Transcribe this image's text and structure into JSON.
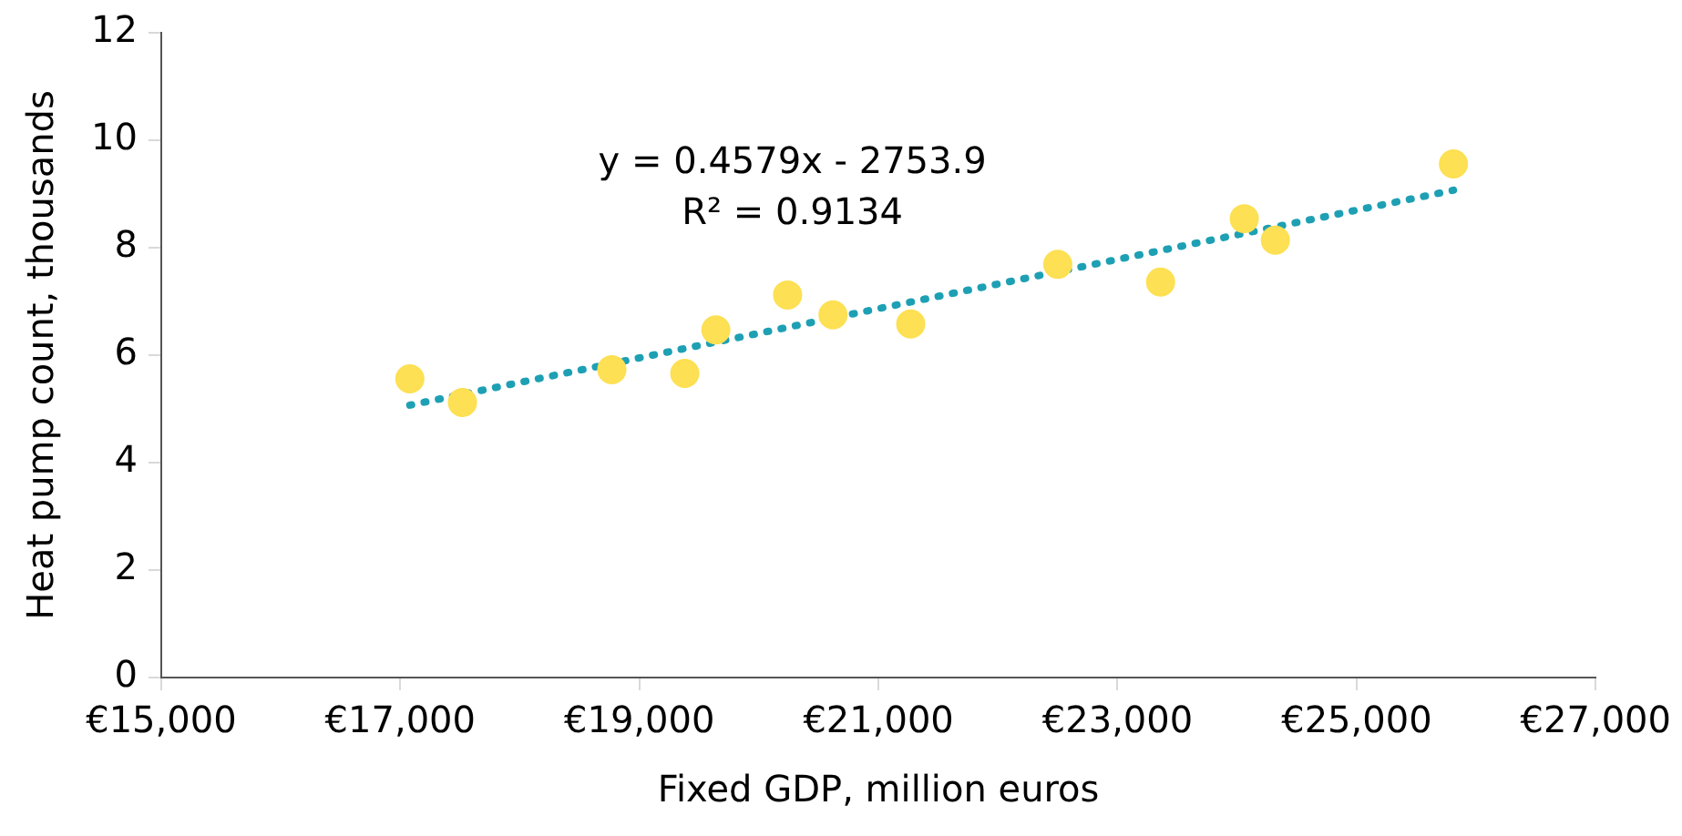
{
  "chart_data": {
    "type": "scatter",
    "xlabel": "Fixed GDP, million euros",
    "ylabel": "Heat pump count, thousands",
    "xlim": [
      15000,
      27000
    ],
    "xticks": [
      {
        "value": 15000,
        "label": "€15,000"
      },
      {
        "value": 17000,
        "label": "€17,000"
      },
      {
        "value": 19000,
        "label": "€19,000"
      },
      {
        "value": 21000,
        "label": "€21,000"
      },
      {
        "value": 23000,
        "label": "€23,000"
      },
      {
        "value": 25000,
        "label": "€25,000"
      },
      {
        "value": 27000,
        "label": "€27,000"
      }
    ],
    "ylim": [
      0,
      12
    ],
    "yticks": [
      0,
      2,
      4,
      6,
      8,
      10,
      12
    ],
    "grid": false,
    "legend": false,
    "series": [
      {
        "color": "#fde053",
        "marker": "circle",
        "x": [
          17080,
          17520,
          18770,
          19380,
          19640,
          20240,
          20620,
          21270,
          22500,
          23360,
          24060,
          24320,
          25810
        ],
        "values": [
          5.56,
          5.12,
          5.73,
          5.66,
          6.47,
          7.12,
          6.75,
          6.58,
          7.69,
          7.36,
          8.54,
          8.14,
          9.56
        ]
      },
      {
        "type": "line",
        "color": "#1ea0b4",
        "marker": "none",
        "line_style": "dotted",
        "x": [
          17080,
          25810
        ],
        "values": [
          5.07,
          9.07
        ]
      }
    ],
    "annotations": [
      "y = 0.4579x - 2753.9",
      "R² = 0.9134"
    ]
  }
}
